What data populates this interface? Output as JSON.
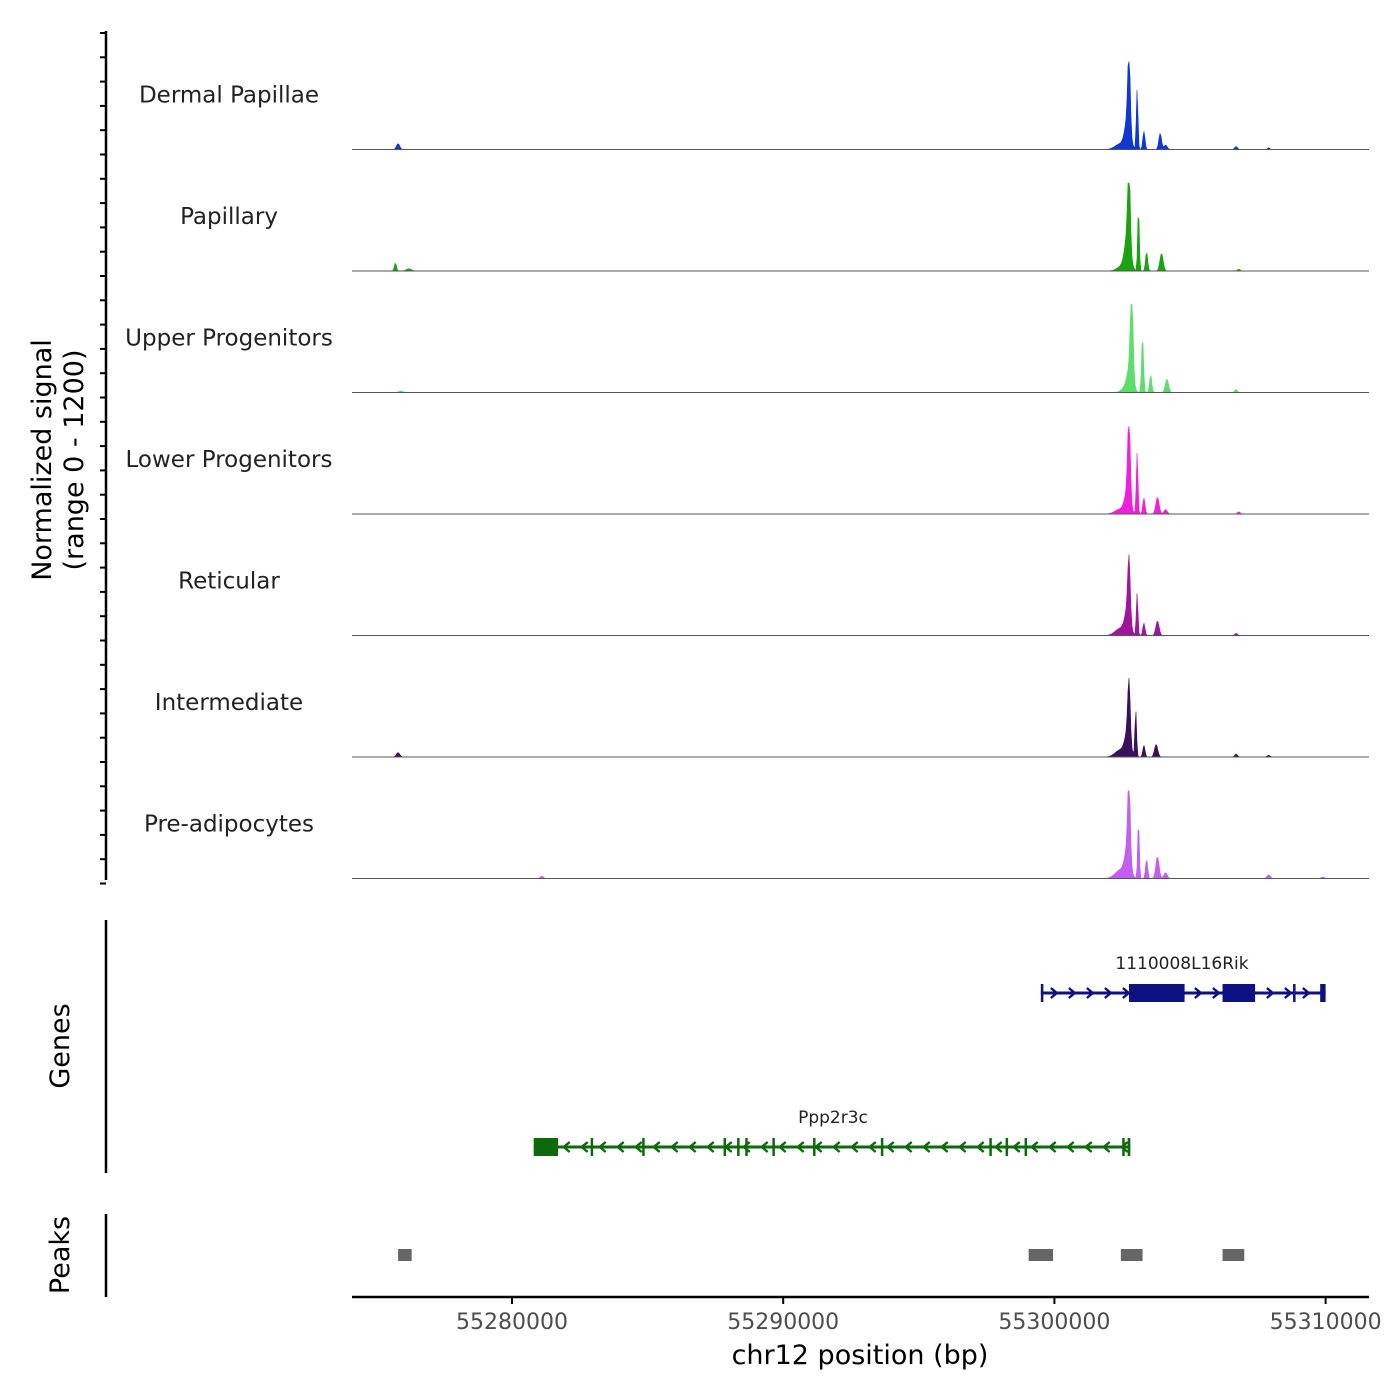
{
  "chart_data": {
    "type": "coverage",
    "y_axis_title": "Normalized signal",
    "y_axis_range_label": "(range 0 - 1200)",
    "y_range": [
      0,
      1200
    ],
    "x_axis_title": "chr12 position (bp)",
    "x_range": [
      55274100,
      55311600
    ],
    "x_ticks": [
      55280000,
      55290000,
      55300000,
      55310000
    ],
    "x_tick_labels": [
      "55280000",
      "55290000",
      "55300000",
      "55310000"
    ],
    "tracks": [
      {
        "name": "Dermal Papillae",
        "color": "#1036d6",
        "peaks": [
          [
            55275800,
            80,
            60
          ],
          [
            55302450,
            80,
            200
          ],
          [
            55302700,
            390,
            100
          ],
          [
            55302750,
            1000,
            45
          ],
          [
            55303050,
            820,
            30
          ],
          [
            55303300,
            250,
            40
          ],
          [
            55303900,
            220,
            50
          ],
          [
            55304100,
            60,
            60
          ],
          [
            55306700,
            40,
            50
          ],
          [
            55307900,
            25,
            40
          ]
        ]
      },
      {
        "name": "Papillary",
        "color": "#19a30f",
        "peaks": [
          [
            55275700,
            110,
            40
          ],
          [
            55276200,
            30,
            100
          ],
          [
            55302550,
            80,
            200
          ],
          [
            55302700,
            450,
            100
          ],
          [
            55302750,
            1070,
            45
          ],
          [
            55303100,
            860,
            30
          ],
          [
            55303400,
            260,
            40
          ],
          [
            55303950,
            240,
            60
          ],
          [
            55306800,
            25,
            50
          ]
        ]
      },
      {
        "name": "Upper Progenitors",
        "color": "#5bdf6c",
        "peaks": [
          [
            55275900,
            20,
            80
          ],
          [
            55302650,
            80,
            150
          ],
          [
            55302800,
            340,
            100
          ],
          [
            55302850,
            1220,
            45
          ],
          [
            55303250,
            770,
            35
          ],
          [
            55303550,
            240,
            40
          ],
          [
            55304150,
            180,
            60
          ],
          [
            55306700,
            40,
            50
          ]
        ]
      },
      {
        "name": "Lower Progenitors",
        "color": "#ef1fdb",
        "peaks": [
          [
            55302450,
            70,
            200
          ],
          [
            55302700,
            300,
            100
          ],
          [
            55302750,
            1100,
            45
          ],
          [
            55303050,
            840,
            30
          ],
          [
            55303300,
            220,
            40
          ],
          [
            55303800,
            230,
            60
          ],
          [
            55304100,
            60,
            60
          ],
          [
            55306800,
            30,
            50
          ]
        ]
      },
      {
        "name": "Reticular",
        "color": "#a1149e",
        "peaks": [
          [
            55302450,
            100,
            200
          ],
          [
            55302700,
            320,
            100
          ],
          [
            55302750,
            790,
            45
          ],
          [
            55303050,
            580,
            30
          ],
          [
            55303300,
            170,
            40
          ],
          [
            55303800,
            200,
            60
          ],
          [
            55306700,
            30,
            50
          ]
        ]
      },
      {
        "name": "Intermediate",
        "color": "#3a0f5c",
        "peaks": [
          [
            55275800,
            60,
            60
          ],
          [
            55302450,
            100,
            200
          ],
          [
            55302700,
            300,
            100
          ],
          [
            55302750,
            780,
            45
          ],
          [
            55303000,
            640,
            30
          ],
          [
            55303300,
            160,
            40
          ],
          [
            55303750,
            170,
            60
          ],
          [
            55306700,
            40,
            50
          ],
          [
            55307900,
            25,
            50
          ]
        ]
      },
      {
        "name": "Pre-adipocytes",
        "color": "#c25ef2",
        "peaks": [
          [
            55281100,
            30,
            60
          ],
          [
            55302450,
            120,
            200
          ],
          [
            55302700,
            380,
            100
          ],
          [
            55302750,
            1060,
            45
          ],
          [
            55303100,
            790,
            30
          ],
          [
            55303400,
            260,
            40
          ],
          [
            55303800,
            300,
            60
          ],
          [
            55304100,
            80,
            60
          ],
          [
            55307900,
            50,
            60
          ],
          [
            55309900,
            20,
            60
          ]
        ]
      }
    ],
    "genes_label": "Genes",
    "genes": [
      {
        "name": "1110008L16Rik",
        "strand": "+",
        "color": "#0e1184",
        "start": 55299500,
        "end": 55310000,
        "exons": [
          [
            55299500,
            55299580
          ],
          [
            55302750,
            55303700
          ],
          [
            55303150,
            55304800
          ],
          [
            55306200,
            55307400
          ],
          [
            55308800,
            55308870
          ],
          [
            55309800,
            55310000
          ]
        ]
      },
      {
        "name": "Ppp2r3c",
        "strand": "-",
        "color": "#0c6a0c",
        "start": 55280800,
        "end": 55302800,
        "exons": [
          [
            55280800,
            55281700
          ],
          [
            55282900,
            55282960
          ],
          [
            55284800,
            55284860
          ],
          [
            55287800,
            55287860
          ],
          [
            55288300,
            55288360
          ],
          [
            55288600,
            55288660
          ],
          [
            55289600,
            55289660
          ],
          [
            55291100,
            55291160
          ],
          [
            55293600,
            55293660
          ],
          [
            55297600,
            55297660
          ],
          [
            55298200,
            55298260
          ],
          [
            55298900,
            55298960
          ],
          [
            55302500,
            55302560
          ],
          [
            55302700,
            55302800
          ]
        ]
      }
    ],
    "peaks_label": "Peaks",
    "peak_regions": [
      [
        55275800,
        55276300
      ],
      [
        55299050,
        55299950
      ],
      [
        55302450,
        55303250
      ],
      [
        55306200,
        55307000
      ]
    ]
  }
}
